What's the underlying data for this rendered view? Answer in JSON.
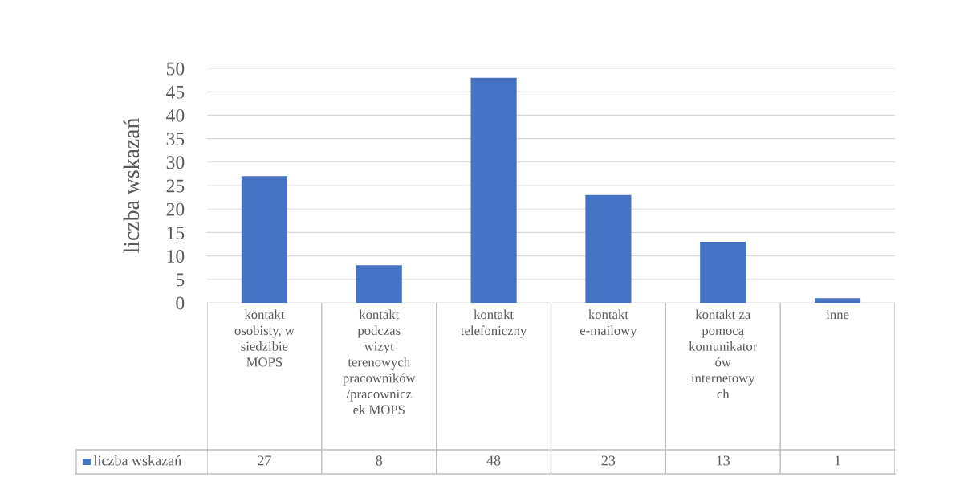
{
  "chart_data": {
    "type": "bar",
    "ylabel": "liczba wskazań",
    "categories": [
      "kontakt osobisty, w siedzibie MOPS",
      "kontakt podczas wizyt terenowych pracowników/pracowniczek MOPS",
      "kontakt telefoniczny",
      "kontakt e-mailowy",
      "kontakt za pomocą komunikatorów internetowych",
      "inne"
    ],
    "series": [
      {
        "name": "liczba wskazań",
        "color": "#4472c4",
        "values": [
          27,
          8,
          48,
          23,
          13,
          1
        ]
      }
    ],
    "ylim": [
      0,
      50
    ],
    "yticks": [
      0,
      5,
      10,
      15,
      20,
      25,
      30,
      35,
      40,
      45,
      50
    ],
    "grid": "y",
    "legend": "bottom",
    "data_labels": true
  }
}
